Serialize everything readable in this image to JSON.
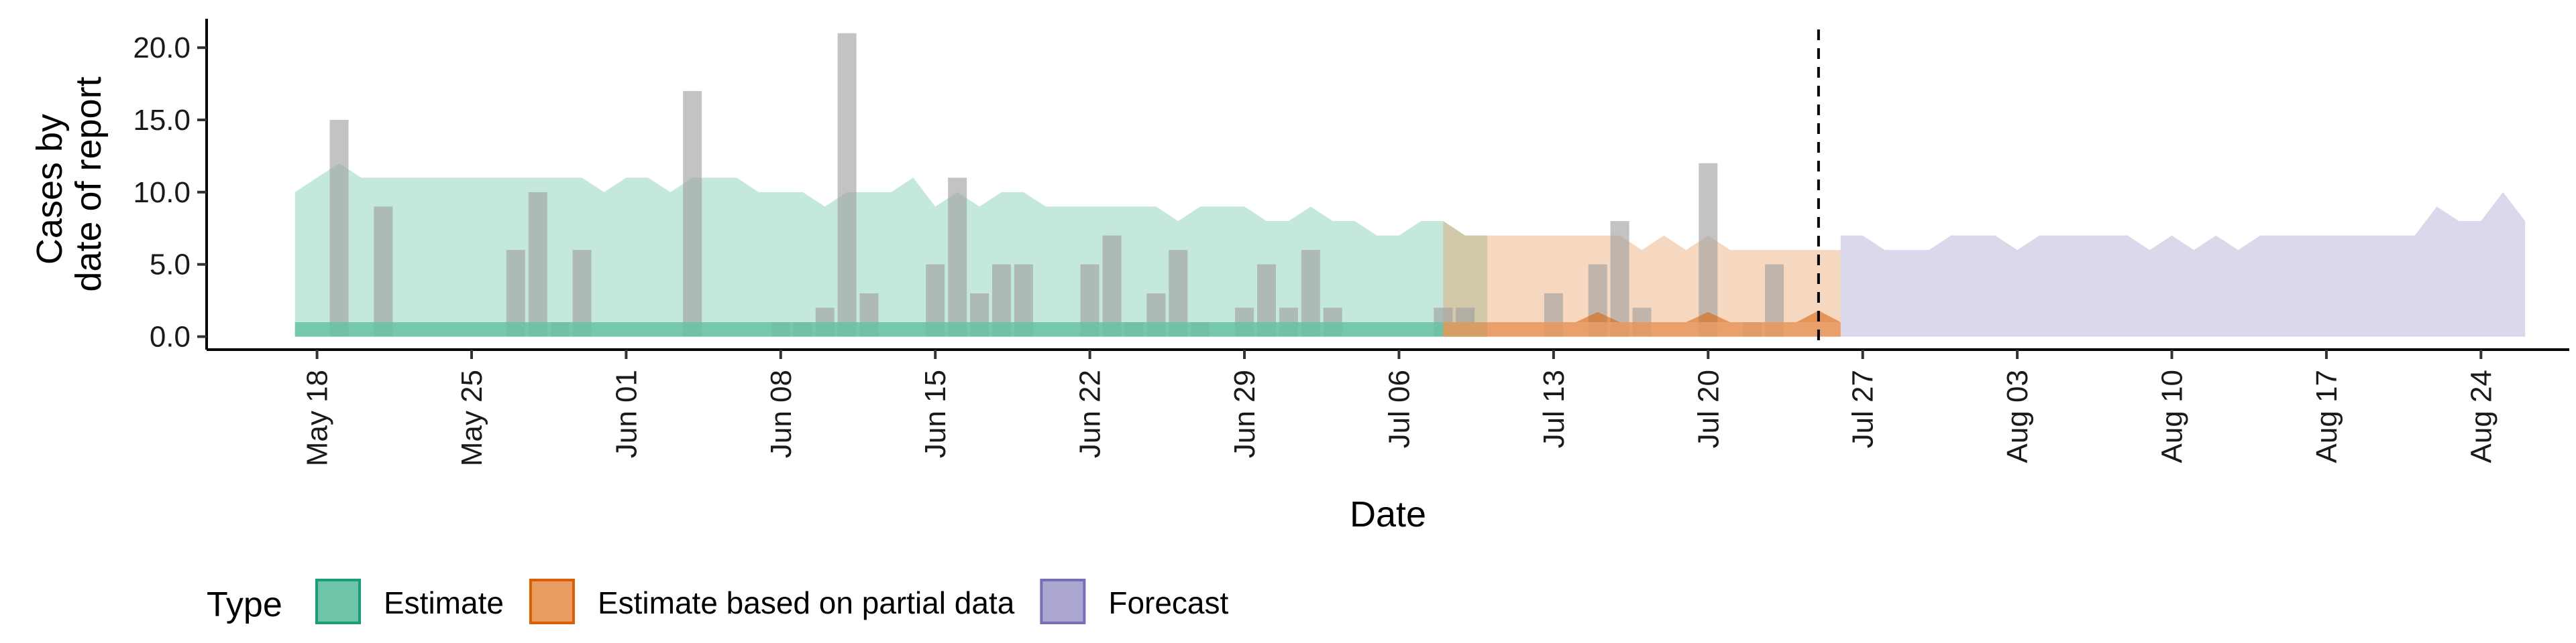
{
  "chart_data": {
    "type": "area",
    "xlabel": "Date",
    "ylabel_lines": [
      "Cases by",
      "date of report"
    ],
    "x_range": [
      "2020-05-13",
      "2020-08-28"
    ],
    "ylim": [
      -0.9,
      22
    ],
    "y_ticks": [
      0,
      5,
      10,
      15,
      20
    ],
    "y_tick_labels": [
      "0.0",
      "5.0",
      "10.0",
      "15.0",
      "20.0"
    ],
    "x_ticks": [
      "2020-05-18",
      "2020-05-25",
      "2020-06-01",
      "2020-06-08",
      "2020-06-15",
      "2020-06-22",
      "2020-06-29",
      "2020-07-06",
      "2020-07-13",
      "2020-07-20",
      "2020-07-27",
      "2020-08-03",
      "2020-08-10",
      "2020-08-17",
      "2020-08-24"
    ],
    "x_tick_labels": [
      "May 18",
      "May 25",
      "Jun 01",
      "Jun 08",
      "Jun 15",
      "Jun 22",
      "Jun 29",
      "Jul 06",
      "Jul 13",
      "Jul 20",
      "Jul 27",
      "Aug 03",
      "Aug 10",
      "Aug 17",
      "Aug 24"
    ],
    "forecast_line_date": "2020-07-25",
    "grid": false,
    "legend": {
      "title": "Type",
      "position": "bottom-left",
      "items": [
        {
          "label": "Estimate",
          "fill": "#66c2a5",
          "stroke": "#1b9e77"
        },
        {
          "label": "Estimate based on partial data",
          "fill": "#e8975a",
          "stroke": "#d95f02"
        },
        {
          "label": "Forecast",
          "fill": "#a6a2cf",
          "stroke": "#7570b3"
        }
      ]
    },
    "bars": {
      "color": "#9e9e9e",
      "points": [
        {
          "date": "2020-05-19",
          "value": 15
        },
        {
          "date": "2020-05-21",
          "value": 9
        },
        {
          "date": "2020-05-27",
          "value": 6
        },
        {
          "date": "2020-05-28",
          "value": 10
        },
        {
          "date": "2020-05-29",
          "value": 1
        },
        {
          "date": "2020-05-30",
          "value": 6
        },
        {
          "date": "2020-06-04",
          "value": 17
        },
        {
          "date": "2020-06-08",
          "value": 1
        },
        {
          "date": "2020-06-09",
          "value": 1
        },
        {
          "date": "2020-06-10",
          "value": 2
        },
        {
          "date": "2020-06-11",
          "value": 21
        },
        {
          "date": "2020-06-12",
          "value": 3
        },
        {
          "date": "2020-06-15",
          "value": 5
        },
        {
          "date": "2020-06-16",
          "value": 11
        },
        {
          "date": "2020-06-17",
          "value": 3
        },
        {
          "date": "2020-06-18",
          "value": 5
        },
        {
          "date": "2020-06-19",
          "value": 5
        },
        {
          "date": "2020-06-22",
          "value": 5
        },
        {
          "date": "2020-06-23",
          "value": 7
        },
        {
          "date": "2020-06-24",
          "value": 1
        },
        {
          "date": "2020-06-25",
          "value": 3
        },
        {
          "date": "2020-06-26",
          "value": 6
        },
        {
          "date": "2020-06-27",
          "value": 1
        },
        {
          "date": "2020-06-29",
          "value": 2
        },
        {
          "date": "2020-06-30",
          "value": 5
        },
        {
          "date": "2020-07-01",
          "value": 2
        },
        {
          "date": "2020-07-02",
          "value": 6
        },
        {
          "date": "2020-07-03",
          "value": 2
        },
        {
          "date": "2020-07-08",
          "value": 2
        },
        {
          "date": "2020-07-09",
          "value": 2
        },
        {
          "date": "2020-07-13",
          "value": 3
        },
        {
          "date": "2020-07-15",
          "value": 5
        },
        {
          "date": "2020-07-16",
          "value": 8
        },
        {
          "date": "2020-07-17",
          "value": 2
        },
        {
          "date": "2020-07-20",
          "value": 12
        },
        {
          "date": "2020-07-22",
          "value": 1
        },
        {
          "date": "2020-07-23",
          "value": 5
        }
      ]
    },
    "series": [
      {
        "name": "Estimate",
        "start": "2020-05-17",
        "upper": [
          10,
          11,
          12,
          11,
          11,
          11,
          11,
          11,
          11,
          11,
          11,
          11,
          11,
          11,
          10,
          11,
          11,
          10,
          11,
          11,
          11,
          10,
          10,
          10,
          9,
          10,
          10,
          10,
          11,
          9,
          10,
          9,
          10,
          10,
          9,
          9,
          9,
          9,
          9,
          9,
          8,
          9,
          9,
          9,
          8,
          8,
          9,
          8,
          8,
          7,
          7,
          8,
          8,
          7,
          7
        ],
        "inner_band": [
          0,
          1
        ]
      },
      {
        "name": "Estimate based on partial data",
        "start": "2020-07-08",
        "upper": [
          8,
          7,
          7,
          7,
          7,
          7,
          7,
          7,
          7,
          6,
          7,
          6,
          7,
          6,
          6,
          6,
          6,
          6,
          6
        ],
        "inner_band": [
          0,
          1
        ],
        "inner_peaks": [
          {
            "date": "2020-07-15",
            "value": 0.7
          },
          {
            "date": "2020-07-20",
            "value": 0.7
          },
          {
            "date": "2020-07-25",
            "value": 0.8
          }
        ]
      },
      {
        "name": "Forecast",
        "start": "2020-07-26",
        "upper": [
          7,
          7,
          6,
          6,
          6,
          7,
          7,
          7,
          6,
          7,
          7,
          7,
          7,
          7,
          6,
          7,
          6,
          7,
          6,
          7,
          7,
          7,
          7,
          7,
          7,
          7,
          7,
          9,
          8,
          8,
          10,
          8
        ],
        "lower": 0
      }
    ]
  }
}
